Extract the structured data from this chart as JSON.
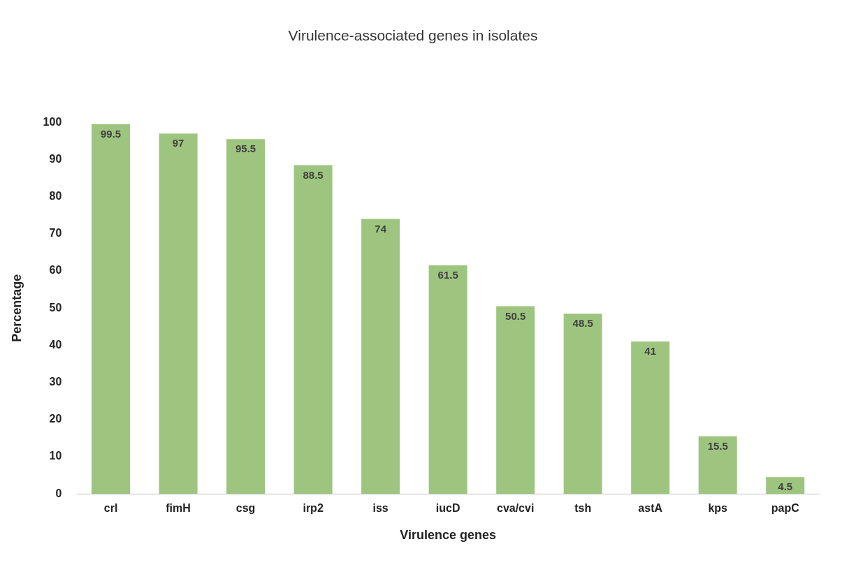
{
  "chart_data": {
    "type": "bar",
    "title": "Virulence-associated genes in isolates",
    "xlabel": "Virulence genes",
    "ylabel": "Percentage",
    "categories": [
      "crl",
      "fimH",
      "csg",
      "irp2",
      "iss",
      "iucD",
      "cva/cvi",
      "tsh",
      "astA",
      "kps",
      "papC"
    ],
    "values": [
      99.5,
      97,
      95.5,
      88.5,
      74,
      61.5,
      50.5,
      48.5,
      41,
      15.5,
      4.5
    ],
    "color": "#9dc57f",
    "ylim": [
      0,
      100
    ],
    "yticks": [
      0,
      10,
      20,
      30,
      40,
      50,
      60,
      70,
      80,
      90,
      100
    ],
    "grid": false,
    "legend": false,
    "data_labels": true
  }
}
